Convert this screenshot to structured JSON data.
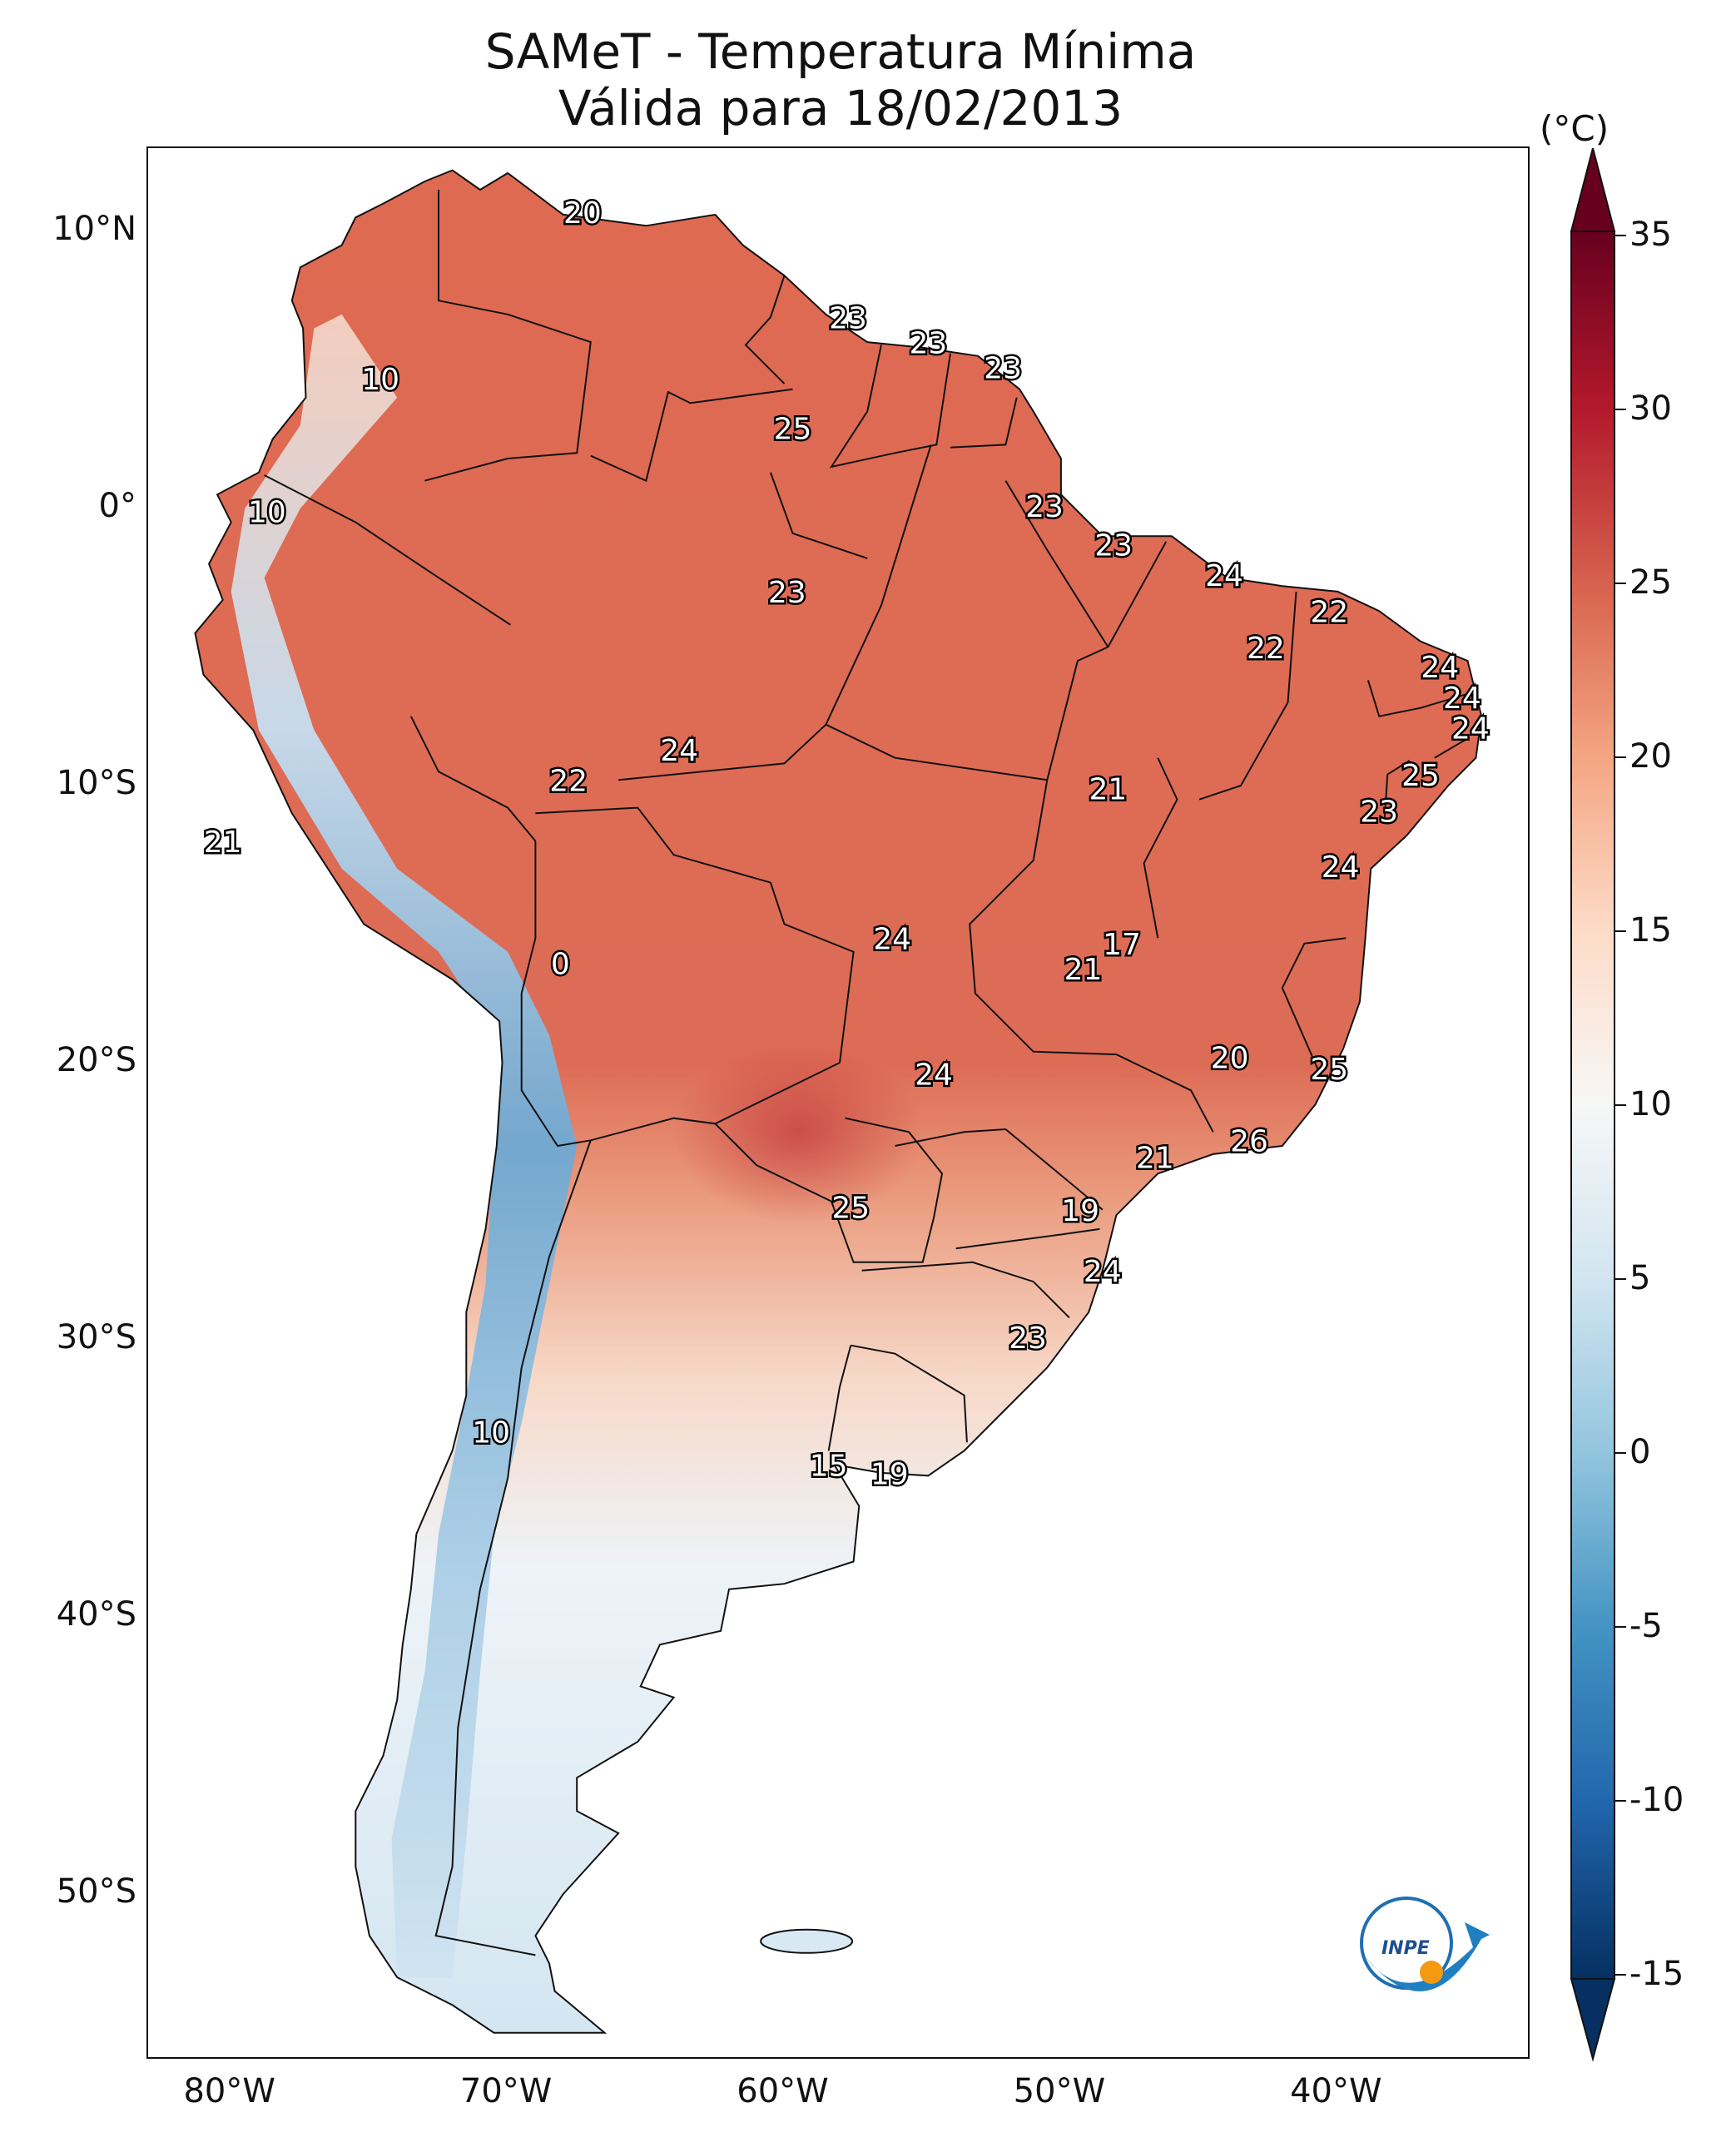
{
  "title": {
    "line1": "SAMeT - Temperatura Mínima",
    "line2": "Válida para 18/02/2013"
  },
  "map": {
    "lat_ticks": [
      {
        "lat": 10,
        "label": "10°N"
      },
      {
        "lat": 0,
        "label": "0°"
      },
      {
        "lat": -10,
        "label": "10°S"
      },
      {
        "lat": -20,
        "label": "20°S"
      },
      {
        "lat": -30,
        "label": "30°S"
      },
      {
        "lat": -40,
        "label": "40°S"
      },
      {
        "lat": -50,
        "label": "50°S"
      }
    ],
    "lon_ticks": [
      {
        "lon": -80,
        "label": "80°W"
      },
      {
        "lon": -70,
        "label": "70°W"
      },
      {
        "lon": -60,
        "label": "60°W"
      },
      {
        "lon": -50,
        "label": "50°W"
      },
      {
        "lon": -40,
        "label": "40°W"
      }
    ],
    "extent": {
      "lon_min": -83,
      "lon_max": -33,
      "lat_min": -56,
      "lat_max": 13
    }
  },
  "colorbar": {
    "unit": "(°C)",
    "ticks": [
      "35",
      "30",
      "25",
      "20",
      "15",
      "10",
      "5",
      "0",
      "-5",
      "-10",
      "-15"
    ],
    "colors": [
      "#053061",
      "#2166ac",
      "#4393c3",
      "#92c5de",
      "#d1e5f0",
      "#f7f7f7",
      "#fddbc7",
      "#f4a582",
      "#d6604d",
      "#b2182b",
      "#67001f"
    ]
  },
  "station_values": [
    {
      "v": "20",
      "lon": -67.3,
      "lat": 10.6
    },
    {
      "v": "10",
      "lon": -74.6,
      "lat": 4.6
    },
    {
      "v": "23",
      "lon": -57.7,
      "lat": 6.8
    },
    {
      "v": "23",
      "lon": -54.8,
      "lat": 5.9
    },
    {
      "v": "23",
      "lon": -52.1,
      "lat": 5.0
    },
    {
      "v": "25",
      "lon": -59.7,
      "lat": 2.8
    },
    {
      "v": "10",
      "lon": -78.7,
      "lat": -0.2
    },
    {
      "v": "23",
      "lon": -50.6,
      "lat": 0.0
    },
    {
      "v": "23",
      "lon": -48.1,
      "lat": -1.4
    },
    {
      "v": "24",
      "lon": -44.1,
      "lat": -2.5
    },
    {
      "v": "22",
      "lon": -40.3,
      "lat": -3.8
    },
    {
      "v": "23",
      "lon": -59.9,
      "lat": -3.1
    },
    {
      "v": "22",
      "lon": -42.6,
      "lat": -5.1
    },
    {
      "v": "24",
      "lon": -36.3,
      "lat": -5.8
    },
    {
      "v": "24",
      "lon": -35.5,
      "lat": -6.9
    },
    {
      "v": "24",
      "lon": -35.2,
      "lat": -8.0
    },
    {
      "v": "24",
      "lon": -63.8,
      "lat": -8.8
    },
    {
      "v": "22",
      "lon": -67.8,
      "lat": -9.9
    },
    {
      "v": "25",
      "lon": -37.0,
      "lat": -9.7
    },
    {
      "v": "21",
      "lon": -48.3,
      "lat": -10.2
    },
    {
      "v": "23",
      "lon": -38.5,
      "lat": -11.0
    },
    {
      "v": "21",
      "lon": -80.3,
      "lat": -12.1
    },
    {
      "v": "24",
      "lon": -39.9,
      "lat": -13.0
    },
    {
      "v": "24",
      "lon": -56.1,
      "lat": -15.6
    },
    {
      "v": "17",
      "lon": -47.8,
      "lat": -15.8
    },
    {
      "v": "0",
      "lon": -68.1,
      "lat": -16.5
    },
    {
      "v": "21",
      "lon": -49.2,
      "lat": -16.7
    },
    {
      "v": "20",
      "lon": -43.9,
      "lat": -19.9
    },
    {
      "v": "24",
      "lon": -54.6,
      "lat": -20.5
    },
    {
      "v": "25",
      "lon": -40.3,
      "lat": -20.3
    },
    {
      "v": "26",
      "lon": -43.2,
      "lat": -22.9
    },
    {
      "v": "21",
      "lon": -46.6,
      "lat": -23.5
    },
    {
      "v": "25",
      "lon": -57.6,
      "lat": -25.3
    },
    {
      "v": "19",
      "lon": -49.3,
      "lat": -25.4
    },
    {
      "v": "24",
      "lon": -48.5,
      "lat": -27.6
    },
    {
      "v": "23",
      "lon": -51.2,
      "lat": -30.0
    },
    {
      "v": "10",
      "lon": -70.6,
      "lat": -33.4
    },
    {
      "v": "15",
      "lon": -58.4,
      "lat": -34.6
    },
    {
      "v": "19",
      "lon": -56.2,
      "lat": -34.9
    }
  ],
  "logo": {
    "text": "INPE"
  }
}
